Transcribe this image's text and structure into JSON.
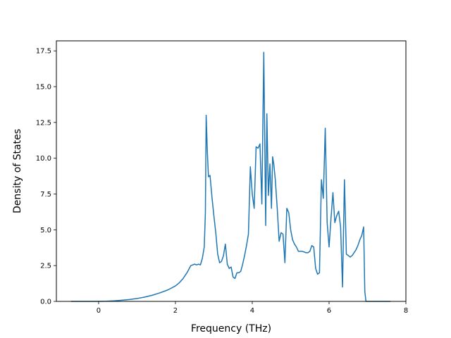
{
  "chart_data": {
    "type": "line",
    "title": "",
    "xlabel": "Frequency (THz)",
    "ylabel": "Density of States",
    "xlim": [
      -1.1,
      8.0
    ],
    "ylim": [
      0,
      18.2
    ],
    "x_ticks": [
      0,
      2,
      4,
      6,
      8
    ],
    "x_tick_labels": [
      "0",
      "2",
      "4",
      "6",
      "8"
    ],
    "y_ticks": [
      0,
      2.5,
      5.0,
      7.5,
      10.0,
      12.5,
      15.0,
      17.5
    ],
    "y_tick_labels": [
      "0.0",
      "2.5",
      "5.0",
      "7.5",
      "10.0",
      "12.5",
      "15.0",
      "17.5"
    ],
    "grid": false,
    "legend": null,
    "series": [
      {
        "color": "#1f77b4",
        "x": [
          -0.72,
          -0.4,
          -0.2,
          0.0,
          0.2,
          0.4,
          0.6,
          0.8,
          1.0,
          1.2,
          1.4,
          1.6,
          1.8,
          2.0,
          2.1,
          2.2,
          2.3,
          2.4,
          2.45,
          2.5,
          2.55,
          2.6,
          2.65,
          2.7,
          2.75,
          2.78,
          2.8,
          2.83,
          2.86,
          2.9,
          2.95,
          3.0,
          3.05,
          3.1,
          3.15,
          3.2,
          3.25,
          3.3,
          3.35,
          3.4,
          3.45,
          3.5,
          3.55,
          3.6,
          3.65,
          3.7,
          3.75,
          3.8,
          3.85,
          3.9,
          3.95,
          4.0,
          4.05,
          4.1,
          4.15,
          4.2,
          4.25,
          4.3,
          4.35,
          4.38,
          4.42,
          4.46,
          4.5,
          4.53,
          4.56,
          4.6,
          4.65,
          4.7,
          4.75,
          4.8,
          4.85,
          4.9,
          4.95,
          5.0,
          5.05,
          5.1,
          5.15,
          5.2,
          5.3,
          5.4,
          5.45,
          5.5,
          5.55,
          5.6,
          5.65,
          5.7,
          5.75,
          5.8,
          5.85,
          5.9,
          5.95,
          6.0,
          6.05,
          6.1,
          6.15,
          6.2,
          6.25,
          6.3,
          6.35,
          6.4,
          6.45,
          6.5,
          6.55,
          6.6,
          6.65,
          6.7,
          6.75,
          6.8,
          6.85,
          6.9,
          6.93,
          6.96,
          7.0,
          7.3,
          7.6
        ],
        "y": [
          0.0,
          0.0,
          0.0,
          0.0,
          0.01,
          0.04,
          0.08,
          0.13,
          0.2,
          0.3,
          0.43,
          0.6,
          0.8,
          1.08,
          1.3,
          1.6,
          2.0,
          2.5,
          2.55,
          2.6,
          2.55,
          2.6,
          2.55,
          3.0,
          3.8,
          6.2,
          13.0,
          10.5,
          8.7,
          8.8,
          7.3,
          6.0,
          4.8,
          3.3,
          2.7,
          2.8,
          3.2,
          4.0,
          2.6,
          2.3,
          2.4,
          1.7,
          1.6,
          2.0,
          2.0,
          2.1,
          2.6,
          3.2,
          3.9,
          4.7,
          9.4,
          7.5,
          6.5,
          10.8,
          10.7,
          11.0,
          6.8,
          17.4,
          5.3,
          13.1,
          7.4,
          9.6,
          6.5,
          10.1,
          9.6,
          8.5,
          6.5,
          4.2,
          4.8,
          4.7,
          2.7,
          6.5,
          6.2,
          5.0,
          4.3,
          4.0,
          3.8,
          3.5,
          3.5,
          3.4,
          3.4,
          3.5,
          3.9,
          3.8,
          2.3,
          1.9,
          2.0,
          8.5,
          7.2,
          12.1,
          5.5,
          3.8,
          5.8,
          7.6,
          5.5,
          6.0,
          6.3,
          5.2,
          1.0,
          8.5,
          3.3,
          3.2,
          3.1,
          3.2,
          3.4,
          3.6,
          3.9,
          4.3,
          4.6,
          5.2,
          0.7,
          0.0,
          0.0,
          0.0,
          0.0
        ]
      }
    ]
  }
}
